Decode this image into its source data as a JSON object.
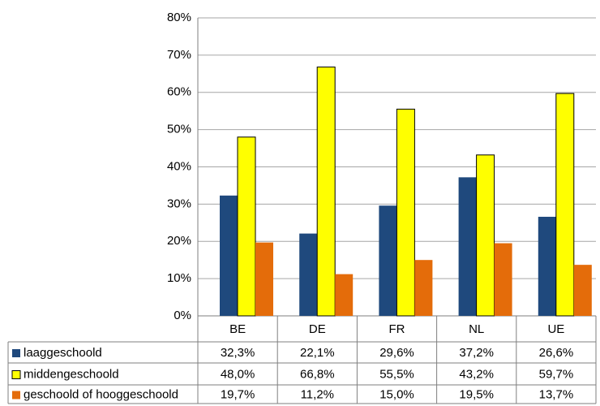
{
  "chart_data": {
    "type": "bar",
    "categories": [
      "BE",
      "DE",
      "FR",
      "NL",
      "UE"
    ],
    "series": [
      {
        "name": "laaggeschoold",
        "color": "#1f497d",
        "values": [
          32.3,
          22.1,
          29.6,
          37.2,
          26.6
        ],
        "value_labels": [
          "32,3%",
          "22,1%",
          "29,6%",
          "37,2%",
          "26,6%"
        ]
      },
      {
        "name": "middengeschoold",
        "color": "#ffff00",
        "values": [
          48.0,
          66.8,
          55.5,
          43.2,
          59.7
        ],
        "value_labels": [
          "48,0%",
          "66,8%",
          "55,5%",
          "43,2%",
          "59,7%"
        ]
      },
      {
        "name": "geschoold of hooggeschoold",
        "color": "#e46c0a",
        "values": [
          19.7,
          11.2,
          15.0,
          19.5,
          13.7
        ],
        "value_labels": [
          "19,7%",
          "11,2%",
          "15,0%",
          "19,5%",
          "13,7%"
        ]
      }
    ],
    "ylim": [
      0,
      80
    ],
    "yticks": [
      {
        "value": 0,
        "label": "0%"
      },
      {
        "value": 10,
        "label": "10%"
      },
      {
        "value": 20,
        "label": "20%"
      },
      {
        "value": 30,
        "label": "30%"
      },
      {
        "value": 40,
        "label": "40%"
      },
      {
        "value": 50,
        "label": "50%"
      },
      {
        "value": 60,
        "label": "60%"
      },
      {
        "value": 70,
        "label": "70%"
      },
      {
        "value": 80,
        "label": "80%"
      }
    ],
    "grid": true
  }
}
